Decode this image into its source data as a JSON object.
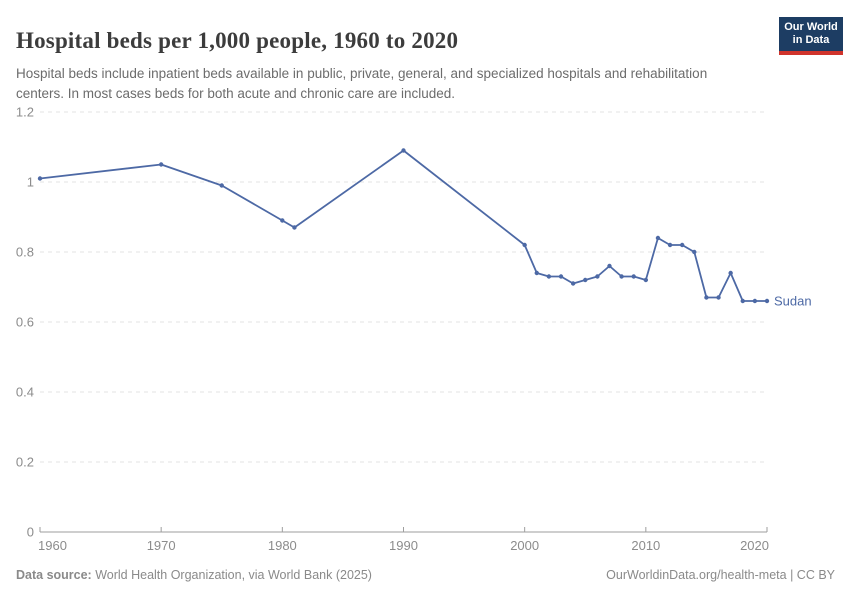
{
  "header": {
    "title": "Hospital beds per 1,000 people, 1960 to 2020",
    "subtitle": "Hospital beds include inpatient beds available in public, private, general, and specialized hospitals and rehabilitation centers. In most cases beds for both acute and chronic care are included."
  },
  "logo": {
    "line1": "Our World",
    "line2": "in Data"
  },
  "chart_data": {
    "type": "line",
    "title": "Hospital beds per 1,000 people, 1960 to 2020",
    "xlabel": "",
    "ylabel": "",
    "x": [
      1960,
      1970,
      1975,
      1980,
      1981,
      1990,
      2000,
      2001,
      2002,
      2003,
      2004,
      2005,
      2006,
      2007,
      2008,
      2009,
      2010,
      2011,
      2012,
      2013,
      2014,
      2015,
      2016,
      2017,
      2018,
      2019,
      2020
    ],
    "series": [
      {
        "name": "Sudan",
        "color": "#4d69a5",
        "values": [
          1.01,
          1.05,
          0.99,
          0.89,
          0.87,
          1.09,
          0.82,
          0.74,
          0.73,
          0.73,
          0.71,
          0.72,
          0.73,
          0.76,
          0.73,
          0.73,
          0.72,
          0.84,
          0.82,
          0.82,
          0.8,
          0.67,
          0.67,
          0.74,
          0.66,
          0.66,
          0.66
        ]
      }
    ],
    "xlim": [
      1960,
      2020
    ],
    "ylim": [
      0,
      1.2
    ],
    "xticks": [
      1960,
      1970,
      1980,
      1990,
      2000,
      2010,
      2020
    ],
    "yticks": [
      0,
      0.2,
      0.4,
      0.6,
      0.8,
      1,
      1.2
    ],
    "ytick_labels": [
      "0",
      "0.2",
      "0.4",
      "0.6",
      "0.8",
      "1",
      "1.2"
    ],
    "grid": "horizontal-dashed",
    "legend": "line-end-label",
    "markers": true
  },
  "footer": {
    "source_label": "Data source:",
    "source_text": " World Health Organization, via World Bank (2025)",
    "link": "OurWorldinData.org/health-meta",
    "license": " | CC BY"
  },
  "colors": {
    "line": "#4d69a5",
    "grid": "#e3e3e3",
    "axis": "#9e9e9e",
    "tick_label": "#8c8c8c",
    "title": "#3c3c3c",
    "subtitle": "#6c6c6c",
    "logo_bg": "#1d3d63",
    "logo_accent": "#d0342c"
  }
}
